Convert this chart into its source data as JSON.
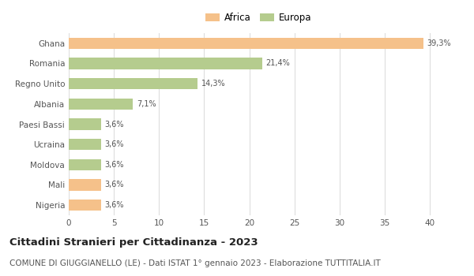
{
  "categories": [
    "Ghana",
    "Romania",
    "Regno Unito",
    "Albania",
    "Paesi Bassi",
    "Ucraina",
    "Moldova",
    "Mali",
    "Nigeria"
  ],
  "values": [
    39.3,
    21.4,
    14.3,
    7.1,
    3.6,
    3.6,
    3.6,
    3.6,
    3.6
  ],
  "labels": [
    "39,3%",
    "21,4%",
    "14,3%",
    "7,1%",
    "3,6%",
    "3,6%",
    "3,6%",
    "3,6%",
    "3,6%"
  ],
  "colors": [
    "#f5c18a",
    "#b5cc8e",
    "#b5cc8e",
    "#b5cc8e",
    "#b5cc8e",
    "#b5cc8e",
    "#b5cc8e",
    "#f5c18a",
    "#f5c18a"
  ],
  "legend_africa_color": "#f5c18a",
  "legend_europa_color": "#b5cc8e",
  "xlim": [
    0,
    42
  ],
  "xticks": [
    0,
    5,
    10,
    15,
    20,
    25,
    30,
    35,
    40
  ],
  "title": "Cittadini Stranieri per Cittadinanza - 2023",
  "subtitle": "COMUNE DI GIUGGIANELLO (LE) - Dati ISTAT 1° gennaio 2023 - Elaborazione TUTTITALIA.IT",
  "title_fontsize": 9.5,
  "subtitle_fontsize": 7.5,
  "label_fontsize": 7,
  "tick_fontsize": 7.5,
  "legend_fontsize": 8.5,
  "bg_color": "#ffffff",
  "grid_color": "#dddddd",
  "bar_height": 0.55
}
